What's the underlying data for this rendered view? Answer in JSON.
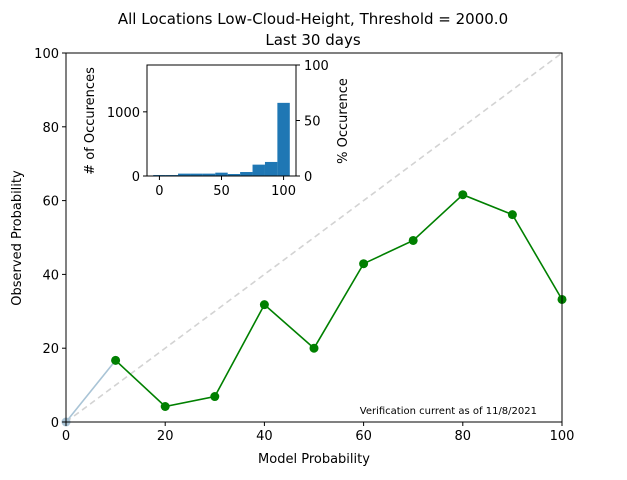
{
  "chart_data": [
    {
      "type": "line",
      "title": "All Locations Low-Cloud-Height, Threshold = 2000.0",
      "subtitle": "Last 30 days",
      "xlabel": "Model Probability",
      "ylabel": "Observed Probability",
      "xlim": [
        0,
        100
      ],
      "ylim": [
        0,
        100
      ],
      "xticks": [
        0,
        20,
        40,
        60,
        80,
        100
      ],
      "yticks": [
        0,
        20,
        40,
        60,
        80,
        100
      ],
      "grid": false,
      "annotation": "Verification current as of 11/8/2021",
      "reference_line": {
        "name": "perfect reliability",
        "x": [
          0,
          100
        ],
        "y": [
          0,
          100
        ],
        "color": "#d3d3d3",
        "style": "dashed"
      },
      "series": [
        {
          "name": "low-sample segment",
          "color": "#a9c4d6",
          "x": [
            0,
            10
          ],
          "y": [
            0,
            16.7
          ]
        },
        {
          "name": "reliability",
          "color": "#008000",
          "x": [
            10,
            20,
            30,
            40,
            50,
            60,
            70,
            80,
            90,
            100
          ],
          "y": [
            16.7,
            4.2,
            6.9,
            31.8,
            20.0,
            42.9,
            49.2,
            61.6,
            56.2,
            33.2
          ]
        }
      ]
    },
    {
      "type": "bar",
      "name": "inset histogram",
      "ylabel": "# of Occurences",
      "y2label": "% Occurence",
      "xticks": [
        0,
        50,
        100
      ],
      "yticks": [
        0,
        1000
      ],
      "y2ticks": [
        0,
        50,
        100
      ],
      "xlim": [
        -10,
        110
      ],
      "ylim": [
        0,
        1730
      ],
      "y2lim": [
        0,
        100
      ],
      "color": "#1f77b4",
      "categories": [
        0,
        10,
        20,
        30,
        40,
        50,
        60,
        70,
        80,
        90,
        100
      ],
      "values": [
        15,
        15,
        37,
        37,
        37,
        52,
        31,
        62,
        177,
        219,
        1140
      ]
    }
  ]
}
